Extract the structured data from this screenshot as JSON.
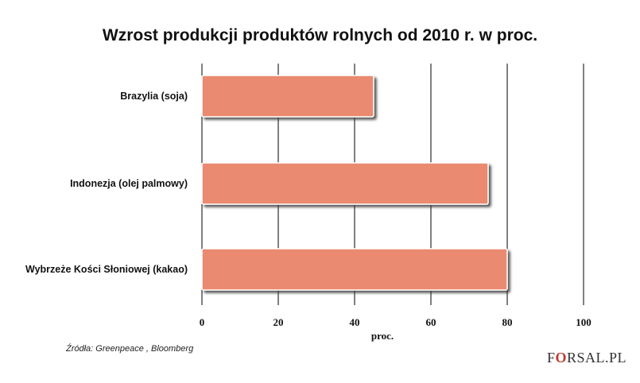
{
  "chart_data": {
    "type": "bar",
    "orientation": "horizontal",
    "title": "Wzrost produkcji produktów rolnych od 2010 r. w proc.",
    "categories": [
      "Brazylia (soja)",
      "Indonezja (olej palmowy)",
      "Wybrzeże Kości Słoniowej (kakao)"
    ],
    "values": [
      45,
      75,
      80
    ],
    "xlabel": "proc.",
    "ylabel": "",
    "xlim": [
      0,
      100
    ],
    "xticks": [
      0,
      20,
      40,
      60,
      80,
      100
    ],
    "grid": true,
    "colors": {
      "bar": "#ea8a6f",
      "bar_border": "#ffffff",
      "shadow": "#4a4a4a",
      "grid": "#000000"
    }
  },
  "source": "Źródła: Greenpeace , Bloomberg",
  "brand": {
    "prefix": "F",
    "accent": "O",
    "suffix": "RSAL.PL"
  }
}
